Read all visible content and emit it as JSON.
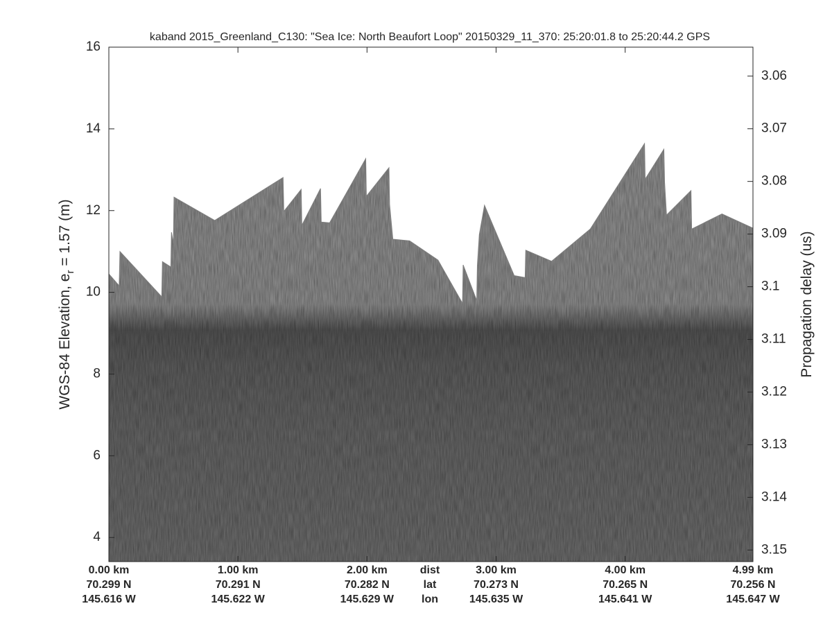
{
  "chart_data": {
    "type": "echogram",
    "title": "kaband 2015_Greenland_C130: \"Sea Ice: North Beaufort Loop\"  20150329_11_370: 25:20:01.8 to 25:20:44.2 GPS",
    "y_label": {
      "main": "WGS-84 Elevation, e",
      "subscript": "r",
      "rest": " = 1.57 (m)"
    },
    "y2_label": "Propagation delay (us)",
    "ylim": [
      3.41,
      16
    ],
    "yticks": [
      4,
      6,
      8,
      10,
      12,
      14,
      16
    ],
    "y2lim": [
      3.0545,
      3.1522
    ],
    "y2ticks": [
      3.06,
      3.07,
      3.08,
      3.09,
      3.1,
      3.11,
      3.12,
      3.13,
      3.14,
      3.15
    ],
    "xlim": [
      0,
      4.99
    ],
    "xticks": [
      {
        "value": 0,
        "label": "0.00 km"
      },
      {
        "value": 1,
        "label": "1.00 km"
      },
      {
        "value": 2,
        "label": "2.00 km"
      },
      {
        "value": 3,
        "label": "3.00 km"
      },
      {
        "value": 4,
        "label": "4.00 km"
      },
      {
        "value": 4.99,
        "label": "4.99 km"
      }
    ],
    "lat_labels": [
      "70.299 N",
      "70.291 N",
      "70.282 N",
      "70.273 N",
      "70.265 N",
      "70.256 N"
    ],
    "lon_labels": [
      "145.616 W",
      "145.622 W",
      "145.629 W",
      "145.635 W",
      "145.641 W",
      "145.647 W"
    ],
    "row_labels": [
      "dist",
      "lat",
      "lon"
    ],
    "surface": {
      "color": "#7f7f7f",
      "x": [
        0,
        0.08,
        0.086,
        0.41,
        0.415,
        0.48,
        0.485,
        0.5,
        0.505,
        0.82,
        1.35,
        1.355,
        1.49,
        1.495,
        1.64,
        1.645,
        1.71,
        1.99,
        1.995,
        2.17,
        2.175,
        2.2,
        2.33,
        2.55,
        2.74,
        2.745,
        2.85,
        2.855,
        2.87,
        2.91,
        3.14,
        3.225,
        3.23,
        3.43,
        3.73,
        4.15,
        4.155,
        4.3,
        4.305,
        4.32,
        4.51,
        4.515,
        4.75,
        4.99
      ],
      "values": [
        10.45,
        10.16,
        11.0,
        9.89,
        10.75,
        10.62,
        11.47,
        11.2,
        12.33,
        11.76,
        12.81,
        11.98,
        12.52,
        11.64,
        12.54,
        11.72,
        11.7,
        13.27,
        12.35,
        13.05,
        12.15,
        11.3,
        11.26,
        10.79,
        9.73,
        10.67,
        9.8,
        10.65,
        11.41,
        12.13,
        10.41,
        10.36,
        11.03,
        10.76,
        11.55,
        13.64,
        12.77,
        13.5,
        12.7,
        11.89,
        12.49,
        11.55,
        11.92,
        11.57
      ]
    }
  }
}
